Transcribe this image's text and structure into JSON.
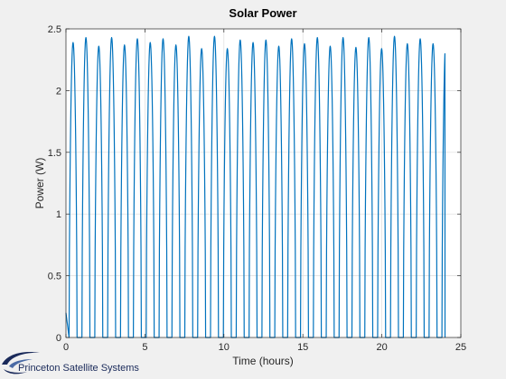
{
  "chart_data": {
    "type": "line",
    "title": "Solar Power",
    "xlabel": "Time (hours)",
    "ylabel": "Power (W)",
    "xlim": [
      0,
      25
    ],
    "ylim": [
      0,
      2.5
    ],
    "xticks": [
      0,
      5,
      10,
      15,
      20,
      25
    ],
    "yticks": [
      0,
      0.5,
      1,
      1.5,
      2,
      2.5
    ],
    "xtick_labels": [
      "0",
      "5",
      "10",
      "15",
      "20",
      "25"
    ],
    "ytick_labels": [
      "0",
      "0.5",
      "1",
      "1.5",
      "2",
      "2.5"
    ],
    "grid": true,
    "line_color": "#0072bd",
    "series": [
      {
        "orbit_period_hours": 0.814,
        "sunlit_fraction": 0.62,
        "first_peak_hour": 0.45,
        "end_hour": 24,
        "start_value": 0.2,
        "peaks": [
          2.39,
          2.43,
          2.36,
          2.43,
          2.37,
          2.42,
          2.39,
          2.42,
          2.37,
          2.44,
          2.34,
          2.44,
          2.34,
          2.41,
          2.39,
          2.41,
          2.36,
          2.42,
          2.38,
          2.43,
          2.36,
          2.43,
          2.35,
          2.43,
          2.34,
          2.44,
          2.38,
          2.42,
          2.38,
          2.41,
          2.36
        ]
      }
    ]
  },
  "logo": {
    "text": "Princeton Satellite Systems",
    "color": "#1a2a5a"
  }
}
